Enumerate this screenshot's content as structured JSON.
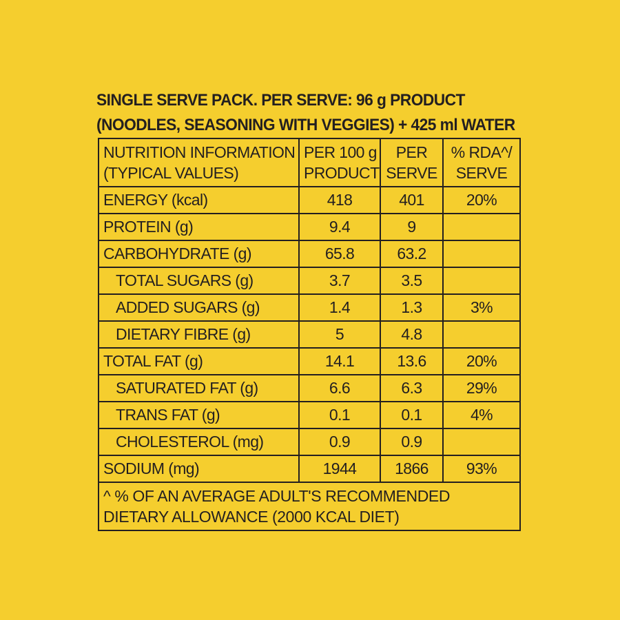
{
  "heading": {
    "line1": "SINGLE SERVE PACK. PER SERVE: 96 g PRODUCT",
    "line2": "(NOODLES, SEASONING WITH VEGGIES) + 425 ml WATER"
  },
  "table": {
    "headers": [
      {
        "line1": "NUTRITION INFORMATION",
        "line2": "(TYPICAL VALUES)"
      },
      {
        "line1": "PER 100 g",
        "line2": "PRODUCT"
      },
      {
        "line1": "PER",
        "line2": "SERVE"
      },
      {
        "line1": "% RDA^/",
        "line2": "SERVE"
      }
    ],
    "rows": [
      {
        "name": "ENERGY (kcal)",
        "per100g": "418",
        "perServe": "401",
        "rda": "20%"
      },
      {
        "name": "PROTEIN (g)",
        "per100g": "9.4",
        "perServe": "9",
        "rda": ""
      },
      {
        "name": "CARBOHYDRATE (g)",
        "per100g": "65.8",
        "perServe": "63.2",
        "rda": ""
      },
      {
        "name": "TOTAL SUGARS (g)",
        "per100g": "3.7",
        "perServe": "3.5",
        "rda": ""
      },
      {
        "name": "ADDED SUGARS (g)",
        "per100g": "1.4",
        "perServe": "1.3",
        "rda": "3%"
      },
      {
        "name": "DIETARY FIBRE (g)",
        "per100g": "5",
        "perServe": "4.8",
        "rda": ""
      },
      {
        "name": "TOTAL FAT (g)",
        "per100g": "14.1",
        "perServe": "13.6",
        "rda": "20%"
      },
      {
        "name": "SATURATED FAT (g)",
        "per100g": "6.6",
        "perServe": "6.3",
        "rda": "29%"
      },
      {
        "name": "TRANS FAT (g)",
        "per100g": "0.1",
        "perServe": "0.1",
        "rda": "4%"
      },
      {
        "name": "CHOLESTEROL (mg)",
        "per100g": "0.9",
        "perServe": "0.9",
        "rda": ""
      },
      {
        "name": "SODIUM (mg)",
        "per100g": "1944",
        "perServe": "1866",
        "rda": "93%"
      }
    ],
    "footnote": "^ % OF AN AVERAGE ADULT'S RECOMMENDED DIETARY ALLOWANCE (2000 KCAL DIET)"
  },
  "colors": {
    "background": "#F5CE2E",
    "text": "#231F20"
  }
}
